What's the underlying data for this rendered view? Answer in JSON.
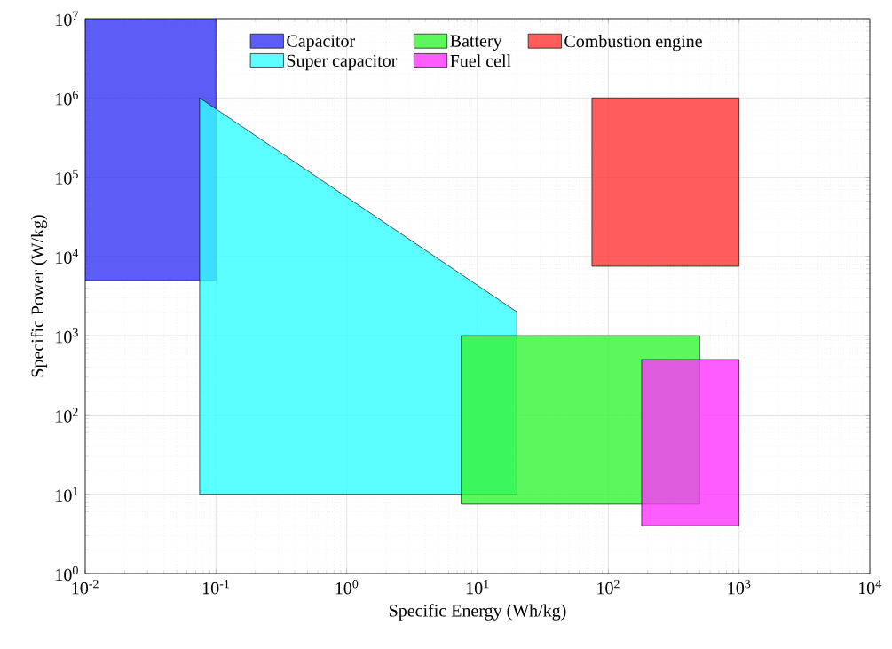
{
  "chart_data": {
    "type": "area",
    "xlabel": "Specific Energy (Wh/kg)",
    "ylabel": "Specific Power (W/kg)",
    "log": "xy",
    "grid": true,
    "legend": "top",
    "xlim": [
      0.01,
      10000
    ],
    "ylim": [
      1,
      10000000
    ],
    "xticks": [
      {
        "value": 0.01,
        "label": "10$^{-2}$"
      },
      {
        "value": 0.1,
        "label": "10$^{-1}$"
      },
      {
        "value": 1,
        "label": "10$^{0}$"
      },
      {
        "value": 10,
        "label": "10$^{1}$"
      },
      {
        "value": 100,
        "label": "10$^{2}$"
      },
      {
        "value": 1000,
        "label": "10$^{3}$"
      },
      {
        "value": 10000,
        "label": "10$^{4}$"
      }
    ],
    "yticks": [
      {
        "value": 1,
        "label": "10$^{0}$"
      },
      {
        "value": 10,
        "label": "10$^{1}$"
      },
      {
        "value": 100,
        "label": "10$^{2}$"
      },
      {
        "value": 1000,
        "label": "10$^{3}$"
      },
      {
        "value": 10000,
        "label": "10$^{4}$"
      },
      {
        "value": 100000,
        "label": "10$^{5}$"
      },
      {
        "value": 1000000,
        "label": "10$^{6}$"
      },
      {
        "value": 10000000,
        "label": "10$^{7}$"
      }
    ],
    "series": [
      {
        "name": "Capacitor",
        "color": "#3333f5",
        "x": [
          0.01,
          0.1,
          0.1,
          0.01
        ],
        "values": [
          5000,
          5000,
          10000000,
          10000000
        ]
      },
      {
        "name": "Super capacitor",
        "color": "#33ffff",
        "x": [
          0.075,
          20,
          20,
          0.075
        ],
        "values": [
          10,
          10,
          2000,
          1000000
        ]
      },
      {
        "name": "Battery",
        "color": "#33f533",
        "x": [
          7.5,
          500,
          500,
          7.5
        ],
        "values": [
          7.5,
          7.5,
          1000,
          1000
        ]
      },
      {
        "name": "Fuel cell",
        "color": "#ff33ff",
        "x": [
          180,
          1000,
          1000,
          180
        ],
        "values": [
          4,
          4,
          500,
          500
        ]
      },
      {
        "name": "Combustion engine",
        "color": "#ff3333",
        "x": [
          75,
          1000,
          1000,
          75
        ],
        "values": [
          7500,
          7500,
          1000000,
          1000000
        ]
      }
    ]
  }
}
